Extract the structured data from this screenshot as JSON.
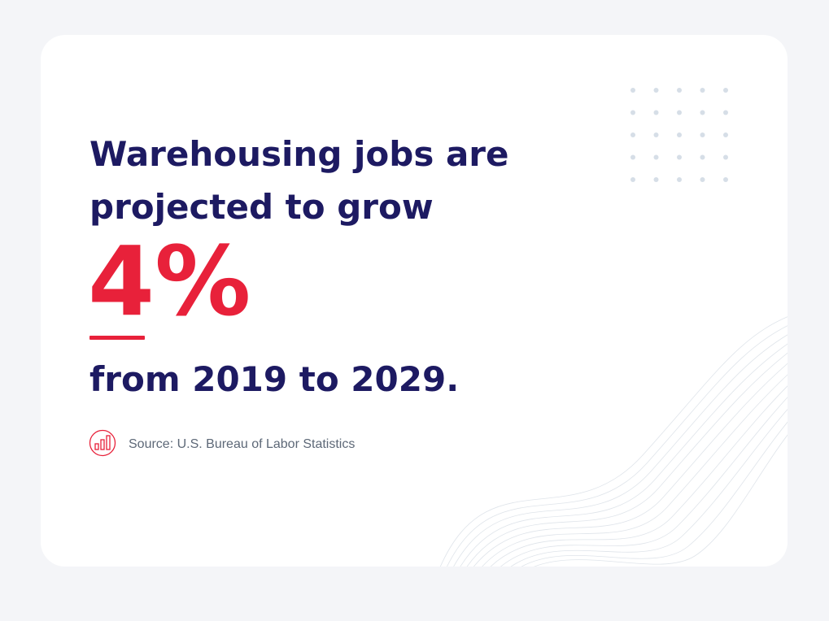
{
  "headline": [
    "Warehousing jobs are",
    "projected to grow"
  ],
  "stat": "4%",
  "period": "from 2019 to 2029.",
  "source": "Source: U.S. Bureau of Labor Statistics"
}
